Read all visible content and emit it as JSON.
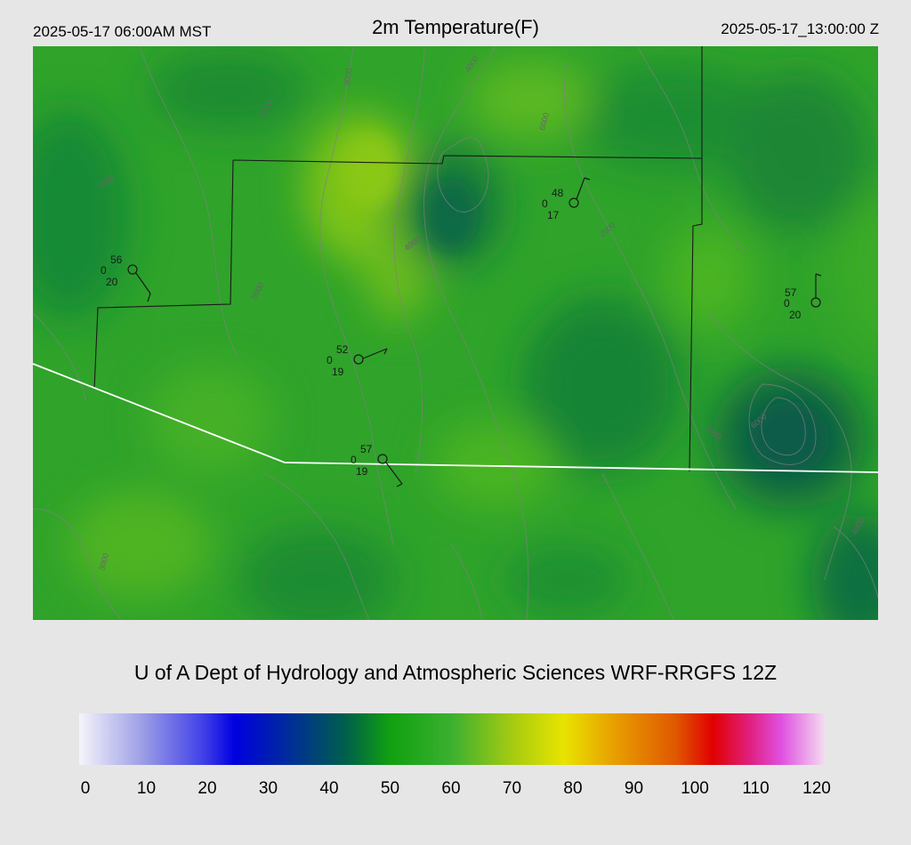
{
  "header": {
    "local_time": "2025-05-17 06:00AM MST",
    "title": "2m Temperature(F)",
    "utc_time": "2025-05-17_13:00:00 Z"
  },
  "credit": "U of A Dept of Hydrology and Atmospheric Sciences WRF-RRGFS 12Z",
  "colorbar": {
    "ticks": [
      "0",
      "10",
      "20",
      "30",
      "40",
      "50",
      "60",
      "70",
      "80",
      "90",
      "100",
      "110",
      "120"
    ],
    "min": 0,
    "max": 120,
    "stops": [
      {
        "v": 0,
        "c": "#f4f4fa"
      },
      {
        "v": 10,
        "c": "#9ea0e6"
      },
      {
        "v": 20,
        "c": "#4040e8"
      },
      {
        "v": 25,
        "c": "#0000e0"
      },
      {
        "v": 33,
        "c": "#0028a0"
      },
      {
        "v": 43,
        "c": "#00604a"
      },
      {
        "v": 50,
        "c": "#10a010"
      },
      {
        "v": 60,
        "c": "#3cb030"
      },
      {
        "v": 70,
        "c": "#a8cc10"
      },
      {
        "v": 78,
        "c": "#e8e400"
      },
      {
        "v": 86,
        "c": "#e8a000"
      },
      {
        "v": 96,
        "c": "#e05800"
      },
      {
        "v": 102,
        "c": "#e00000"
      },
      {
        "v": 108,
        "c": "#e02080"
      },
      {
        "v": 113,
        "c": "#e050e0"
      },
      {
        "v": 120,
        "c": "#f4dcf0"
      }
    ]
  },
  "stations": [
    {
      "id": "stn-1",
      "temp": "56",
      "dew": "20",
      "cloud": "0"
    },
    {
      "id": "stn-2",
      "temp": "48",
      "dew": "17",
      "cloud": "0"
    },
    {
      "id": "stn-3",
      "temp": "57",
      "dew": "20",
      "cloud": "0"
    },
    {
      "id": "stn-4",
      "temp": "52",
      "dew": "19",
      "cloud": "0"
    },
    {
      "id": "stn-5",
      "temp": "57",
      "dew": "19",
      "cloud": "0"
    }
  ],
  "contour_labels": [
    "3000",
    "4000",
    "5000",
    "6000",
    "2000",
    "4000",
    "4000",
    "5000",
    "6000",
    "5000",
    "4000",
    "3000"
  ],
  "colors": {
    "background": "#e6e6e6",
    "boundary_white": "#ffffff",
    "boundary_black": "#1a1a1a",
    "contour": "#808080"
  }
}
